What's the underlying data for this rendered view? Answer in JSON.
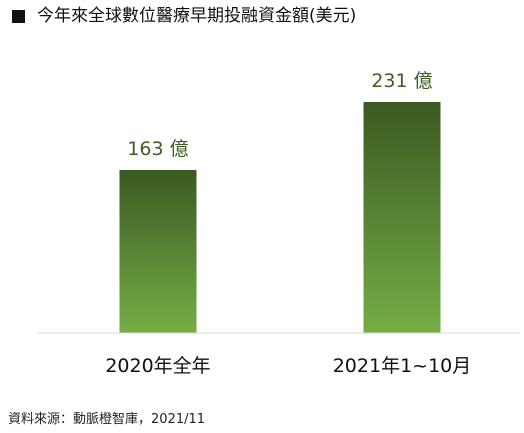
{
  "title": "今年來全球數位醫療早期投融資金額(美元)",
  "source": "資料來源：動脈橙智庫，2021/11",
  "colors": {
    "bar_top": "#3a5a22",
    "bar_bottom": "#75ad45",
    "value_label": "#3f5f22",
    "baseline": "#d9d9d9",
    "category_label": "#111111"
  },
  "chart_data": {
    "type": "bar",
    "title": "今年來全球數位醫療早期投融資金額(美元)",
    "xlabel": "",
    "ylabel": "",
    "categories": [
      "2020年全年",
      "2021年1~10月"
    ],
    "values": [
      163,
      231
    ],
    "data_labels": [
      "163 億",
      "231 億"
    ],
    "unit": "億",
    "ylim": [
      0,
      260
    ],
    "grid": false,
    "legend": "none"
  }
}
